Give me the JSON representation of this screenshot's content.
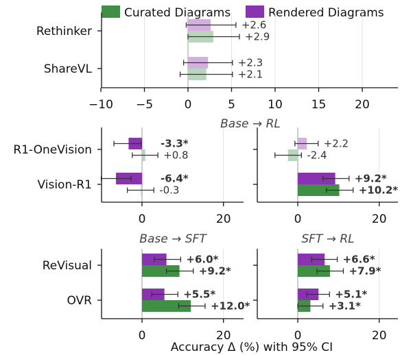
{
  "chart_data": [
    {
      "id": "top",
      "type": "bar",
      "orientation": "horizontal",
      "title": "",
      "categories": [
        "Rethinker",
        "ShareVL"
      ],
      "series": [
        {
          "name": "Rendered Diagrams",
          "values": [
            2.6,
            2.3
          ],
          "ci_low": [
            -0.2,
            -0.5
          ],
          "ci_high": [
            5.5,
            5.1
          ],
          "labels": [
            "+2.6",
            "+2.3"
          ],
          "significant": [
            false,
            false
          ]
        },
        {
          "name": "Curated Diagrams",
          "values": [
            2.9,
            2.1
          ],
          "ci_low": [
            0.0,
            -0.9
          ],
          "ci_high": [
            5.9,
            5.1
          ],
          "labels": [
            "+2.9",
            "+2.1"
          ],
          "significant": [
            false,
            false
          ]
        }
      ],
      "xlim": [
        -10,
        24
      ],
      "xticks": [
        "−10",
        "−5",
        "0",
        "5",
        "10",
        "15",
        "20"
      ],
      "xtick_values": [
        -10,
        -5,
        0,
        5,
        10,
        15,
        20
      ]
    },
    {
      "id": "mid-left",
      "type": "bar",
      "orientation": "horizontal",
      "title": "",
      "categories": [
        "R1-OneVision",
        "Vision-R1"
      ],
      "series": [
        {
          "name": "Rendered Diagrams",
          "values": [
            -3.3,
            -6.4
          ],
          "ci_low": [
            -6.9,
            -10.0
          ],
          "ci_high": [
            -0.2,
            -2.7
          ],
          "labels": [
            "-3.3*",
            "-6.4*"
          ],
          "significant": [
            true,
            true
          ]
        },
        {
          "name": "Curated Diagrams",
          "values": [
            0.8,
            -0.3
          ],
          "ci_low": [
            -2.4,
            -3.6
          ],
          "ci_high": [
            3.9,
            2.9
          ],
          "labels": [
            "+0.8",
            "-0.3"
          ],
          "significant": [
            false,
            false
          ]
        }
      ],
      "xlim": [
        -10,
        24
      ],
      "xticks": [
        "0",
        "20"
      ],
      "xtick_values": [
        0,
        20
      ]
    },
    {
      "id": "mid-right",
      "type": "bar",
      "orientation": "horizontal",
      "title": "Base → RL",
      "categories": [
        "R1-OneVision",
        "Vision-R1"
      ],
      "series": [
        {
          "name": "Rendered Diagrams",
          "values": [
            2.2,
            9.2
          ],
          "ci_low": [
            -0.7,
            6.2
          ],
          "ci_high": [
            5.0,
            12.6
          ],
          "labels": [
            "+2.2",
            "+9.2*"
          ],
          "significant": [
            false,
            true
          ]
        },
        {
          "name": "Curated Diagrams",
          "values": [
            -2.4,
            10.2
          ],
          "ci_low": [
            -5.6,
            7.0
          ],
          "ci_high": [
            0.9,
            13.6
          ],
          "labels": [
            "-2.4",
            "+10.2*"
          ],
          "significant": [
            false,
            true
          ]
        }
      ],
      "xlim": [
        -10,
        24
      ],
      "xticks": [
        "0",
        "20"
      ],
      "xtick_values": [
        0,
        20
      ]
    },
    {
      "id": "bot-left",
      "type": "bar",
      "orientation": "horizontal",
      "title": "Base → SFT",
      "categories": [
        "ReVisual",
        "OVR"
      ],
      "series": [
        {
          "name": "Rendered Diagrams",
          "values": [
            6.0,
            5.5
          ],
          "ci_low": [
            3.0,
            2.4
          ],
          "ci_high": [
            9.5,
            8.8
          ],
          "labels": [
            "+6.0*",
            "+5.5*"
          ],
          "significant": [
            true,
            true
          ]
        },
        {
          "name": "Curated Diagrams",
          "values": [
            9.2,
            12.0
          ],
          "ci_low": [
            6.0,
            9.0
          ],
          "ci_high": [
            12.6,
            15.5
          ],
          "labels": [
            "+9.2*",
            "+12.0*"
          ],
          "significant": [
            true,
            true
          ]
        }
      ],
      "xlim": [
        -10,
        24
      ],
      "xticks": [
        "0",
        "20"
      ],
      "xtick_values": [
        0,
        20
      ]
    },
    {
      "id": "bot-right",
      "type": "bar",
      "orientation": "horizontal",
      "title": "SFT → RL",
      "categories": [
        "ReVisual",
        "OVR"
      ],
      "series": [
        {
          "name": "Rendered Diagrams",
          "values": [
            6.6,
            5.1
          ],
          "ci_low": [
            3.4,
            2.2
          ],
          "ci_high": [
            9.7,
            7.8
          ],
          "labels": [
            "+6.6*",
            "+5.1*"
          ],
          "significant": [
            true,
            true
          ]
        },
        {
          "name": "Curated Diagrams",
          "values": [
            7.9,
            3.1
          ],
          "ci_low": [
            4.7,
            0.0
          ],
          "ci_high": [
            11.2,
            6.2
          ],
          "labels": [
            "+7.9*",
            "+3.1*"
          ],
          "significant": [
            true,
            true
          ]
        }
      ],
      "xlim": [
        -10,
        24
      ],
      "xticks": [
        "0",
        "20"
      ],
      "xtick_values": [
        0,
        20
      ]
    }
  ],
  "legend": {
    "placement": "top",
    "items": [
      {
        "label": "Curated Diagrams",
        "color": "#3f8f45"
      },
      {
        "label": "Rendered Diagrams",
        "color": "#8a33b0"
      }
    ]
  },
  "colors": {
    "rendered": "#8a33b0",
    "rendered_light": "#d3b0e0",
    "curated": "#3f8f45",
    "curated_light": "#b8d6bb"
  },
  "xlabel": "Accuracy Δ (%) with 95% CI"
}
